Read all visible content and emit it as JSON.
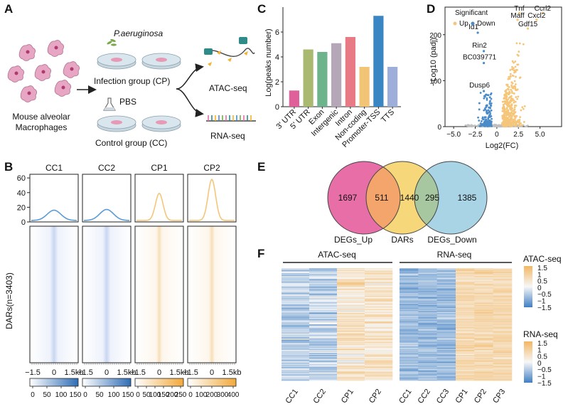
{
  "panels": {
    "a": "A",
    "b": "B",
    "c": "C",
    "d": "D",
    "e": "E",
    "f": "F"
  },
  "panel_a": {
    "cell_label": [
      "Mouse alveolar",
      "Macrophages"
    ],
    "pathogen": "P.aeruginosa",
    "control_agent": "PBS",
    "infection_group": "Infection group (CP)",
    "control_group": "Control group (CC)",
    "atac": "ATAC-seq",
    "rna": "RNA-seq",
    "colors": {
      "cell": "#e6a6c4",
      "dish": "#d9e6ee",
      "atac_icon": "#f2b32a",
      "rna_icon": "#2e8b87"
    }
  },
  "panel_b": {
    "samples": [
      "CC1",
      "CC2",
      "CP1",
      "CP2"
    ],
    "yaxis_ticks": [
      "60",
      "40",
      "20",
      "0"
    ],
    "ylabel": "DARs(n=3403)",
    "xticks": [
      "−1.5",
      "0",
      "1.5kb"
    ],
    "scales": [
      {
        "ticks": [
          "0",
          "50",
          "100",
          "150"
        ]
      },
      {
        "ticks": [
          "0",
          "50",
          "100",
          "150"
        ]
      },
      {
        "ticks": [
          "0",
          "50",
          "100",
          "150",
          "200",
          "250"
        ]
      },
      {
        "ticks": [
          "0",
          "100",
          "200",
          "300",
          "400"
        ]
      }
    ],
    "profile_peaks": [
      16,
      17,
      39,
      58
    ],
    "colors": {
      "cc": "#5b9bd5",
      "cp": "#f5c67a"
    }
  },
  "chart_data": [
    {
      "type": "bar",
      "title": "",
      "ylabel": "Log(peaks number)",
      "categories": [
        "3' UTR",
        "5' UTR",
        "Exon",
        "Intergenic",
        "Intron",
        "Non-coding",
        "Promoter-TSS",
        "TTS"
      ],
      "values": [
        1.3,
        4.6,
        4.4,
        5.1,
        5.6,
        3.2,
        7.3,
        3.2
      ],
      "colors": [
        "#e0609a",
        "#a9b970",
        "#6db38b",
        "#b5a6b8",
        "#e87a85",
        "#f1c476",
        "#3a86c4",
        "#9eaedb"
      ],
      "ylim": [
        0,
        8
      ],
      "yticks": [
        "0",
        "2",
        "4",
        "6"
      ]
    },
    {
      "type": "scatter",
      "title": "",
      "xlabel": "Log2(FC)",
      "ylabel": "−Log10 (padj)",
      "xticks": [
        "−5.0",
        "−2.5",
        "0",
        "2.5",
        "5.0"
      ],
      "yticks": [
        "0",
        "100",
        "200"
      ],
      "xlim": [
        -6,
        7.5
      ],
      "ylim": [
        0,
        260
      ],
      "legend": {
        "title": "Significant",
        "up": "Up",
        "down": "Down"
      },
      "colors": {
        "up": "#f5c67a",
        "down": "#4a8bc9",
        "ns": "#bfbfbf"
      },
      "labels_up": [
        {
          "text": "Tnf",
          "x": 2.6,
          "y": 252
        },
        {
          "text": "Ccrl2",
          "x": 5.3,
          "y": 252
        },
        {
          "text": "Maff",
          "x": 2.4,
          "y": 237
        },
        {
          "text": "Cxcl2",
          "x": 4.6,
          "y": 237
        },
        {
          "text": "Gdf15",
          "x": 3.6,
          "y": 218
        }
      ],
      "labels_down": [
        {
          "text": "Id1",
          "x": -2.7,
          "y": 212
        },
        {
          "text": "Rin2",
          "x": -2.0,
          "y": 172
        },
        {
          "text": "BC039771",
          "x": -2.0,
          "y": 146
        },
        {
          "text": "Dusp6",
          "x": -2.0,
          "y": 85
        }
      ]
    }
  ],
  "panel_e": {
    "sets": [
      "DEGs_Up",
      "DARs",
      "DEGs_Down"
    ],
    "counts": [
      "1697",
      "511",
      "1440",
      "295",
      "1385"
    ],
    "colors": {
      "up": "#e86ea8",
      "dars": "#f6d87a",
      "down": "#a8d4e6",
      "ov1": "#f4a56c",
      "ov2": "#a7c7a0"
    }
  },
  "panel_f": {
    "atac_title": "ATAC-seq",
    "rna_title": "RNA-seq",
    "atac_cols": [
      "CC1",
      "CC2",
      "CP1",
      "CP2"
    ],
    "rna_cols": [
      "CC1",
      "CC2",
      "CC3",
      "CP1",
      "CP2",
      "CP3"
    ],
    "legend_atac_title": "ATAC-seq",
    "legend_rna_title": "RNA-seq",
    "legend_ticks": [
      "1.5",
      "1",
      "0.5",
      "0",
      "−0.5",
      "−1",
      "−1.5"
    ],
    "colors": {
      "low": "#3f7fc4",
      "mid": "#f7f7f7",
      "high": "#f3b763"
    }
  }
}
